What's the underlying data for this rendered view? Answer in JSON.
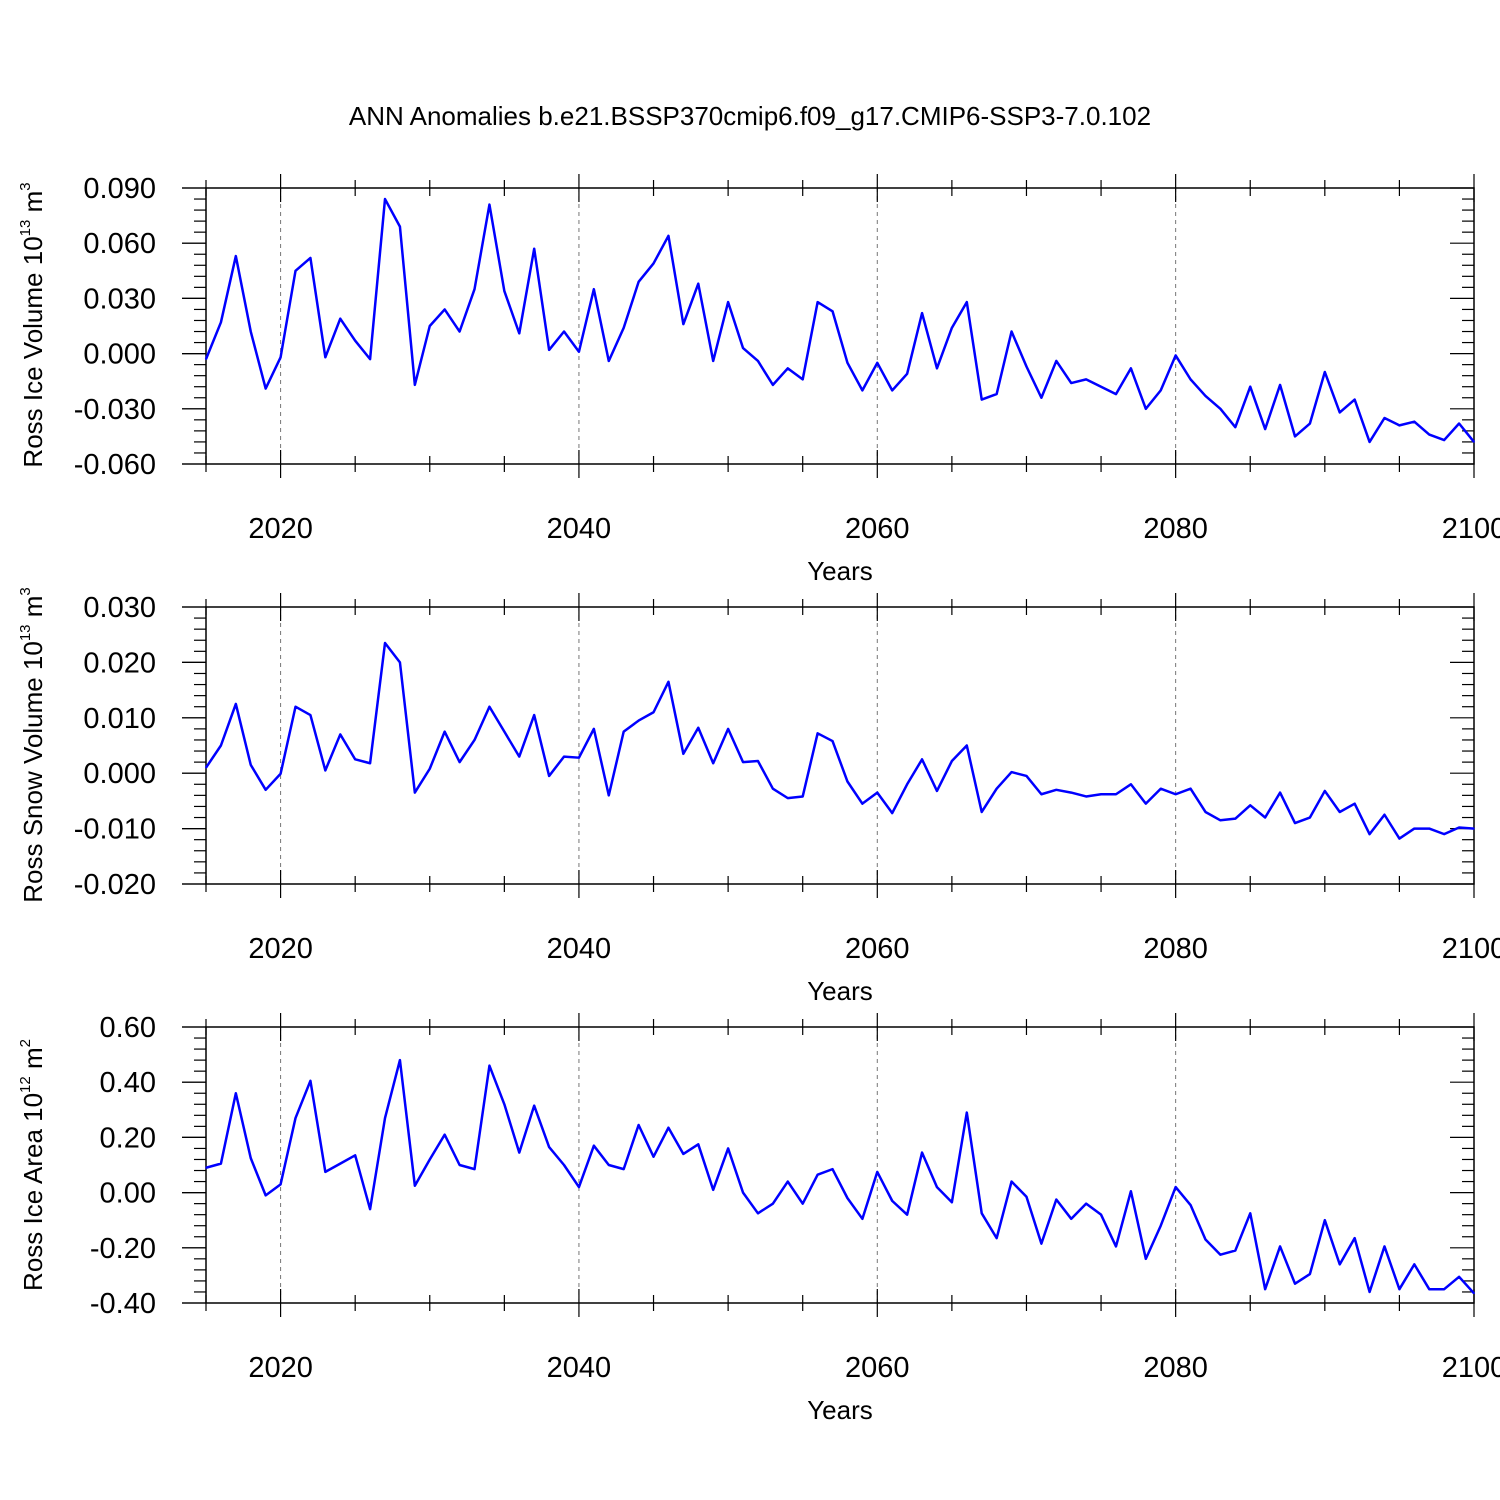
{
  "title": "ANN Anomalies b.e21.BSSP370cmip6.f09_g17.CMIP6-SSP3-7.0.102",
  "colors": {
    "line": "#0000ff",
    "axis": "#000000",
    "grid": "#777777"
  },
  "chart_data": [
    {
      "type": "line",
      "title": "ANN Anomalies b.e21.BSSP370cmip6.f09_g17.CMIP6-SSP3-7.0.102",
      "xlabel": "Years",
      "ylabel": {
        "text": "Ross Ice Volume 10",
        "exp": "13",
        "unit": " m",
        "unit_exp": "3"
      },
      "xlim": [
        2015,
        2100
      ],
      "ylim": [
        -0.06,
        0.09
      ],
      "xticks": [
        2020,
        2040,
        2060,
        2080,
        2100
      ],
      "xtick_labels": [
        "2020",
        "2040",
        "2060",
        "2080",
        "2100"
      ],
      "yticks": [
        -0.06,
        -0.03,
        0.0,
        0.03,
        0.06,
        0.09
      ],
      "ytick_labels": [
        "-0.060",
        "-0.030",
        "0.000",
        "0.030",
        "0.060",
        "0.090"
      ],
      "grid": "vertical dashed at major x ticks",
      "x_start": 2015,
      "values": [
        -0.003,
        0.017,
        0.053,
        0.012,
        -0.019,
        -0.002,
        0.045,
        0.052,
        -0.002,
        0.019,
        0.007,
        -0.003,
        0.084,
        0.069,
        -0.017,
        0.015,
        0.024,
        0.012,
        0.035,
        0.081,
        0.034,
        0.011,
        0.057,
        0.002,
        0.012,
        0.001,
        0.035,
        -0.004,
        0.014,
        0.039,
        0.049,
        0.064,
        0.016,
        0.038,
        -0.004,
        0.028,
        0.003,
        -0.004,
        -0.017,
        -0.008,
        -0.014,
        0.028,
        0.023,
        -0.005,
        -0.02,
        -0.005,
        -0.02,
        -0.011,
        0.022,
        -0.008,
        0.014,
        0.028,
        -0.025,
        -0.022,
        0.012,
        -0.007,
        -0.024,
        -0.004,
        -0.016,
        -0.014,
        -0.018,
        -0.022,
        -0.008,
        -0.03,
        -0.02,
        -0.001,
        -0.014,
        -0.023,
        -0.03,
        -0.04,
        -0.018,
        -0.041,
        -0.017,
        -0.045,
        -0.038,
        -0.01,
        -0.032,
        -0.025,
        -0.048,
        -0.035,
        -0.039,
        -0.037,
        -0.044,
        -0.047,
        -0.038,
        -0.048
      ]
    },
    {
      "type": "line",
      "xlabel": "Years",
      "ylabel": {
        "text": "Ross Snow Volume 10",
        "exp": "13",
        "unit": " m",
        "unit_exp": "3"
      },
      "xlim": [
        2015,
        2100
      ],
      "ylim": [
        -0.02,
        0.03
      ],
      "xticks": [
        2020,
        2040,
        2060,
        2080,
        2100
      ],
      "xtick_labels": [
        "2020",
        "2040",
        "2060",
        "2080",
        "2100"
      ],
      "yticks": [
        -0.02,
        -0.01,
        0.0,
        0.01,
        0.02,
        0.03
      ],
      "ytick_labels": [
        "-0.020",
        "-0.010",
        "0.000",
        "0.010",
        "0.020",
        "0.030"
      ],
      "grid": "vertical dashed at major x ticks",
      "x_start": 2015,
      "values": [
        0.001,
        0.005,
        0.0125,
        0.0015,
        -0.003,
        -0.0001,
        0.012,
        0.0105,
        0.0005,
        0.007,
        0.0025,
        0.0018,
        0.0235,
        0.02,
        -0.0035,
        0.0008,
        0.0075,
        0.002,
        0.006,
        0.012,
        0.0075,
        0.003,
        0.0105,
        -0.0005,
        0.003,
        0.0028,
        0.008,
        -0.004,
        0.0075,
        0.0095,
        0.011,
        0.0165,
        0.0035,
        0.0082,
        0.0018,
        0.008,
        0.002,
        0.0022,
        -0.0028,
        -0.0045,
        -0.0042,
        0.0072,
        0.0058,
        -0.0015,
        -0.0055,
        -0.0035,
        -0.0072,
        -0.002,
        0.0025,
        -0.0032,
        0.0022,
        0.005,
        -0.007,
        -0.0028,
        0.0002,
        -0.0005,
        -0.0038,
        -0.003,
        -0.0035,
        -0.0042,
        -0.0038,
        -0.0038,
        -0.002,
        -0.0055,
        -0.0028,
        -0.0038,
        -0.0028,
        -0.007,
        -0.0085,
        -0.0082,
        -0.0058,
        -0.008,
        -0.0035,
        -0.009,
        -0.008,
        -0.0032,
        -0.007,
        -0.0055,
        -0.011,
        -0.0075,
        -0.0118,
        -0.01,
        -0.01,
        -0.011,
        -0.0098,
        -0.01
      ]
    },
    {
      "type": "line",
      "xlabel": "Years",
      "ylabel": {
        "text": "Ross Ice Area 10",
        "exp": "12",
        "unit": " m",
        "unit_exp": "2"
      },
      "xlim": [
        2015,
        2100
      ],
      "ylim": [
        -0.4,
        0.6
      ],
      "xticks": [
        2020,
        2040,
        2060,
        2080,
        2100
      ],
      "xtick_labels": [
        "2020",
        "2040",
        "2060",
        "2080",
        "2100"
      ],
      "yticks": [
        -0.4,
        -0.2,
        0.0,
        0.2,
        0.4,
        0.6
      ],
      "ytick_labels": [
        "-0.40",
        "-0.20",
        "0.00",
        "0.20",
        "0.40",
        "0.60"
      ],
      "grid": "vertical dashed at major x ticks",
      "x_start": 2015,
      "values": [
        0.09,
        0.105,
        0.36,
        0.125,
        -0.01,
        0.03,
        0.27,
        0.405,
        0.075,
        0.105,
        0.135,
        -0.06,
        0.27,
        0.48,
        0.025,
        0.12,
        0.21,
        0.1,
        0.085,
        0.46,
        0.32,
        0.145,
        0.315,
        0.165,
        0.1,
        0.02,
        0.17,
        0.1,
        0.085,
        0.245,
        0.13,
        0.235,
        0.14,
        0.175,
        0.01,
        0.16,
        0.0,
        -0.075,
        -0.04,
        0.04,
        -0.04,
        0.065,
        0.085,
        -0.02,
        -0.095,
        0.075,
        -0.03,
        -0.08,
        0.145,
        0.02,
        -0.035,
        0.29,
        -0.075,
        -0.165,
        0.04,
        -0.015,
        -0.185,
        -0.025,
        -0.095,
        -0.04,
        -0.08,
        -0.195,
        0.005,
        -0.24,
        -0.12,
        0.02,
        -0.045,
        -0.17,
        -0.225,
        -0.21,
        -0.075,
        -0.35,
        -0.195,
        -0.33,
        -0.295,
        -0.1,
        -0.26,
        -0.165,
        -0.36,
        -0.195,
        -0.35,
        -0.26,
        -0.35,
        -0.35,
        -0.305,
        -0.365
      ]
    }
  ]
}
